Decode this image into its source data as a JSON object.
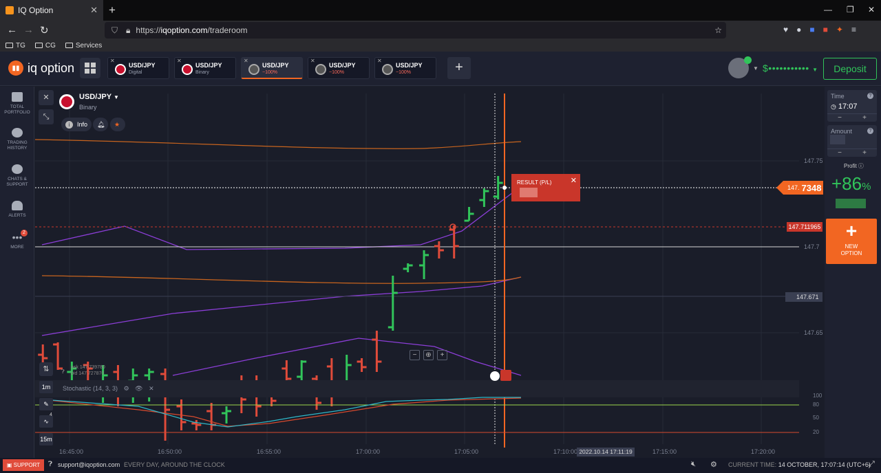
{
  "browser": {
    "tab_title": "IQ Option",
    "url_prefix": "https://",
    "url_host": "iqoption.com",
    "url_path": "/traderoom",
    "bookmarks": [
      "TG",
      "CG",
      "Services"
    ]
  },
  "header": {
    "logo_text": "iq option",
    "tabs": [
      {
        "name": "USD/JPY",
        "sub": "Digital",
        "state": "normal"
      },
      {
        "name": "USD/JPY",
        "sub": "Binary",
        "state": "normal"
      },
      {
        "name": "USD/JPY",
        "sub": "−100%",
        "state": "active"
      },
      {
        "name": "USD/JPY",
        "sub": "−100%",
        "state": "normal"
      },
      {
        "name": "USD/JPY",
        "sub": "−100%",
        "state": "normal"
      }
    ],
    "balance": "$•••••••••••",
    "deposit_label": "Deposit"
  },
  "sidebar": {
    "items": [
      {
        "label1": "TOTAL",
        "label2": "PORTFOLIO"
      },
      {
        "label1": "TRADING",
        "label2": "HISTORY"
      },
      {
        "label1": "CHATS &",
        "label2": "SUPPORT"
      },
      {
        "label1": "ALERTS",
        "label2": ""
      },
      {
        "label1": "MORE",
        "label2": "",
        "badge": "2"
      }
    ]
  },
  "asset": {
    "name": "USD/JPY",
    "type": "Binary",
    "info_label": "Info"
  },
  "chart": {
    "result_title": "RESULT (P/L)",
    "price_prefix": "147.",
    "price_main": "7348",
    "strike_price": "147.711965",
    "alert_price": "147.671",
    "ask": "ask 147.739780",
    "bid": "bid 147.727870",
    "price_ticks": [
      "147.75",
      "147.7",
      "147.65"
    ],
    "time_ticks": [
      "16:45:00",
      "16:50:00",
      "16:55:00",
      "17:00:00",
      "17:05:00",
      "17:10:00",
      "17:15:00",
      "17:20:00"
    ],
    "time_highlight": "2022.10.14 17:11:19",
    "stochastic_label": "Stochastic (14, 3, 3)",
    "stoch_ticks": [
      "100",
      "80",
      "50",
      "20"
    ],
    "timeframes": [
      "1m",
      "15m"
    ],
    "tool_badge": "4"
  },
  "right_panel": {
    "time_label": "Time",
    "time_value": "17:07",
    "amount_label": "Amount",
    "profit_label": "Profit",
    "profit_value": "+86",
    "profit_unit": "%",
    "new_option_line1": "NEW",
    "new_option_line2": "OPTION"
  },
  "footer": {
    "support_label": "SUPPORT",
    "email": "support@iqoption.com",
    "slogan": "EVERY DAY, AROUND THE CLOCK",
    "current_time_label": "CURRENT TIME:",
    "current_time_value": "14 OCTOBER, 17:07:14 (UTC+6)"
  }
}
